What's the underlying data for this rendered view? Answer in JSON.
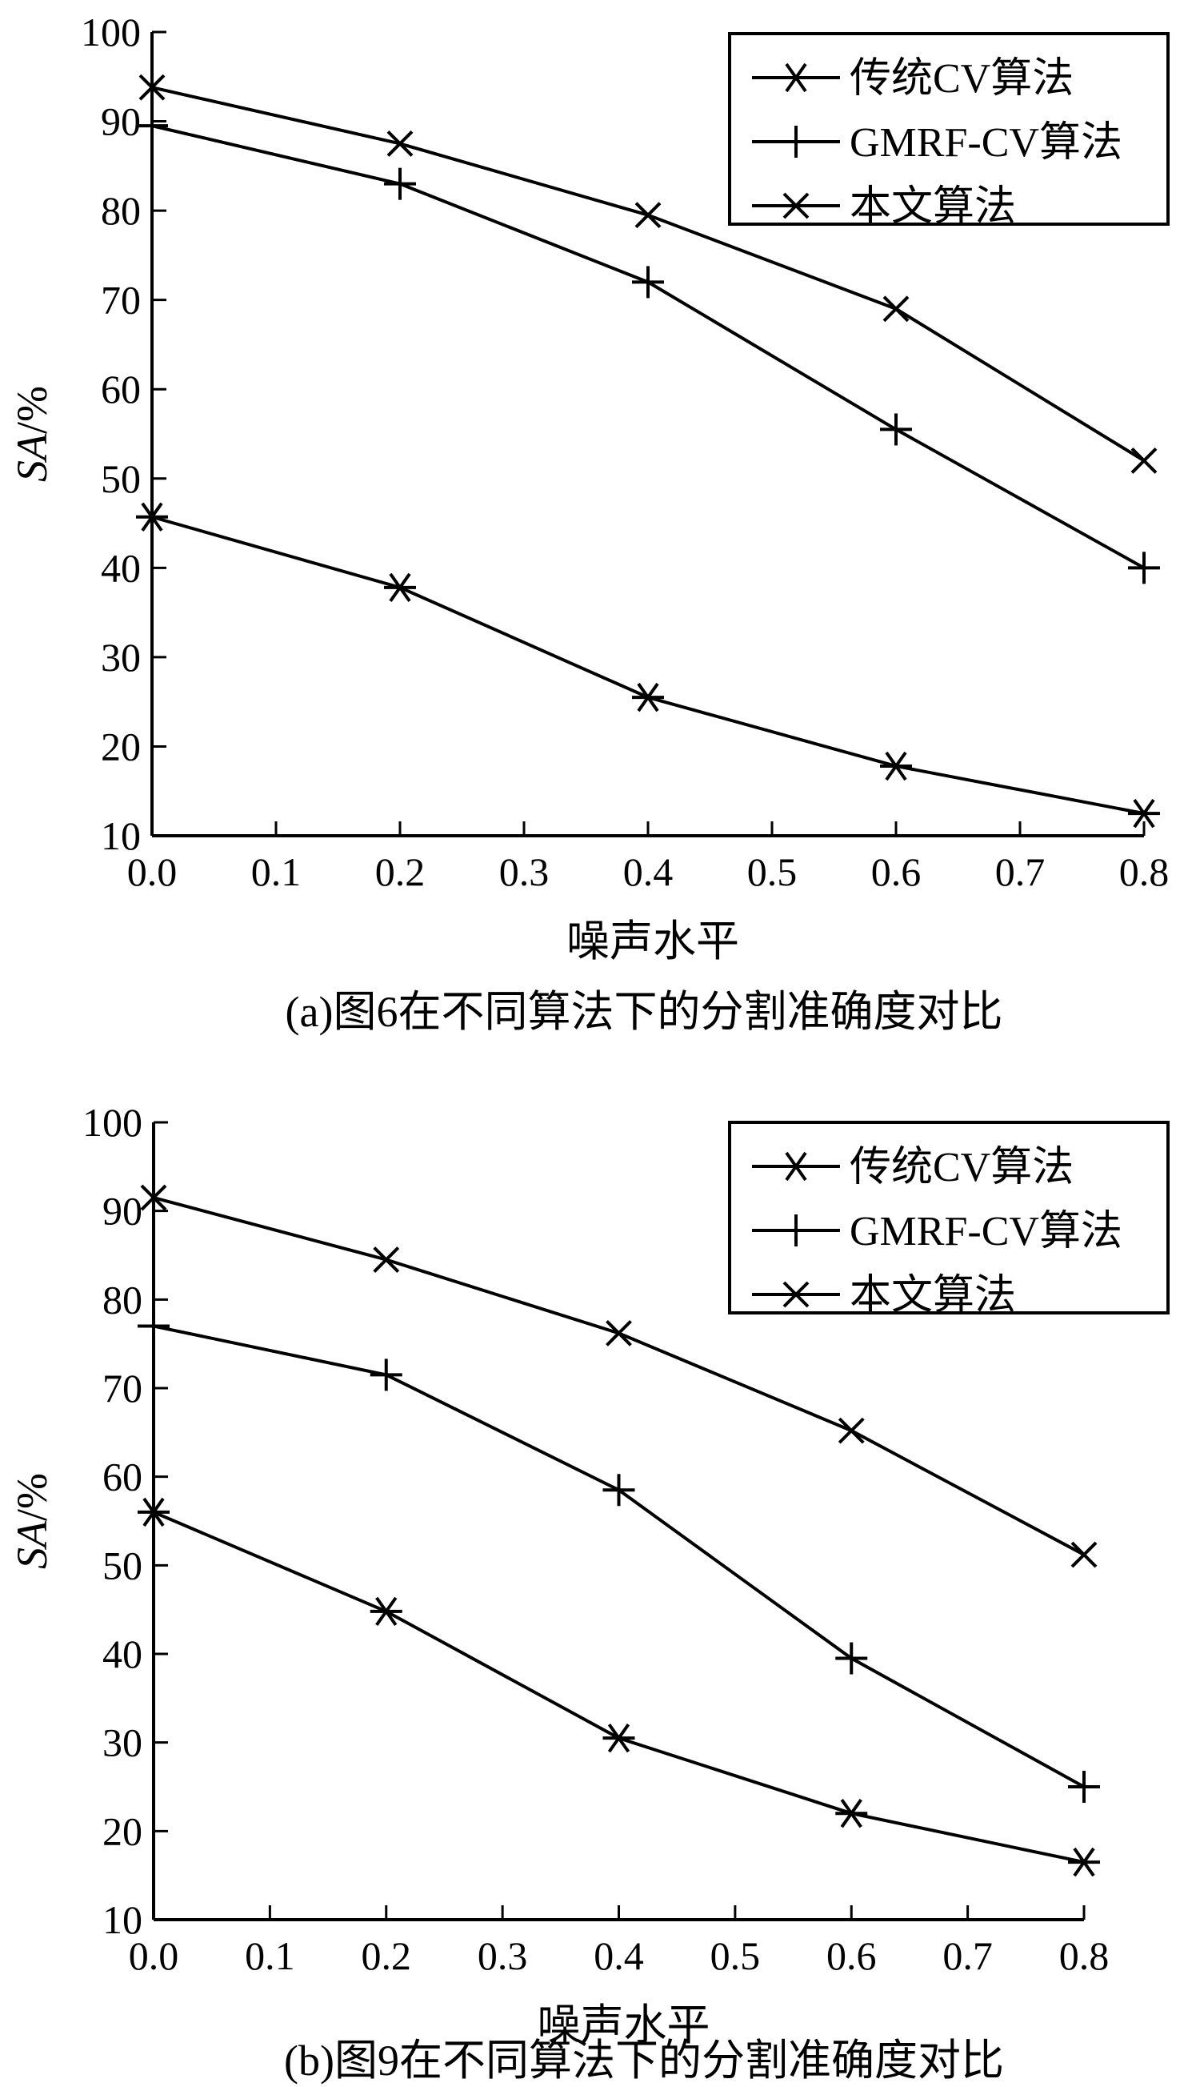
{
  "chart_data": [
    {
      "type": "line",
      "caption": "(a)图6在不同算法下的分割准确度对比",
      "xlabel": "噪声水平",
      "ylabel": "SA/%",
      "ylabel_parts": {
        "italic": "SA",
        "rest": "/%"
      },
      "xlim": [
        0.0,
        0.8
      ],
      "ylim": [
        10,
        100
      ],
      "x_ticks": [
        "0.0",
        "0.1",
        "0.2",
        "0.3",
        "0.4",
        "0.5",
        "0.6",
        "0.7",
        "0.8"
      ],
      "y_ticks": [
        "10",
        "20",
        "30",
        "40",
        "50",
        "60",
        "70",
        "80",
        "90",
        "100"
      ],
      "legend_position": "top-right",
      "grid": false,
      "x": [
        0.0,
        0.2,
        0.4,
        0.6,
        0.8
      ],
      "series": [
        {
          "name": "传统CV算法",
          "marker": "asterisk",
          "values": [
            45.7,
            37.8,
            25.5,
            17.8,
            12.5
          ]
        },
        {
          "name": "GMRF-CV算法",
          "marker": "plus",
          "values": [
            89.5,
            83.0,
            72.0,
            55.5,
            40.0
          ]
        },
        {
          "name": "本文算法",
          "marker": "cross",
          "values": [
            93.8,
            87.5,
            79.5,
            69.0,
            52.0
          ]
        }
      ]
    },
    {
      "type": "line",
      "caption": "(b)图9在不同算法下的分割准确度对比",
      "xlabel": "噪声水平",
      "ylabel": "SA/%",
      "ylabel_parts": {
        "italic": "SA",
        "rest": "/%"
      },
      "xlim": [
        0.0,
        0.8
      ],
      "ylim": [
        10,
        100
      ],
      "x_ticks": [
        "0.0",
        "0.1",
        "0.2",
        "0.3",
        "0.4",
        "0.5",
        "0.6",
        "0.7",
        "0.8"
      ],
      "y_ticks": [
        "10",
        "20",
        "30",
        "40",
        "50",
        "60",
        "70",
        "80",
        "90",
        "100"
      ],
      "legend_position": "top-right",
      "grid": false,
      "x": [
        0.0,
        0.2,
        0.4,
        0.6,
        0.8
      ],
      "series": [
        {
          "name": "传统CV算法",
          "marker": "asterisk",
          "values": [
            56.0,
            44.8,
            30.5,
            22.0,
            16.5
          ]
        },
        {
          "name": "GMRF-CV算法",
          "marker": "plus",
          "values": [
            77.0,
            71.5,
            58.5,
            39.5,
            25.0
          ]
        },
        {
          "name": "本文算法",
          "marker": "cross",
          "values": [
            91.5,
            84.5,
            76.2,
            65.2,
            51.2
          ]
        }
      ]
    }
  ]
}
